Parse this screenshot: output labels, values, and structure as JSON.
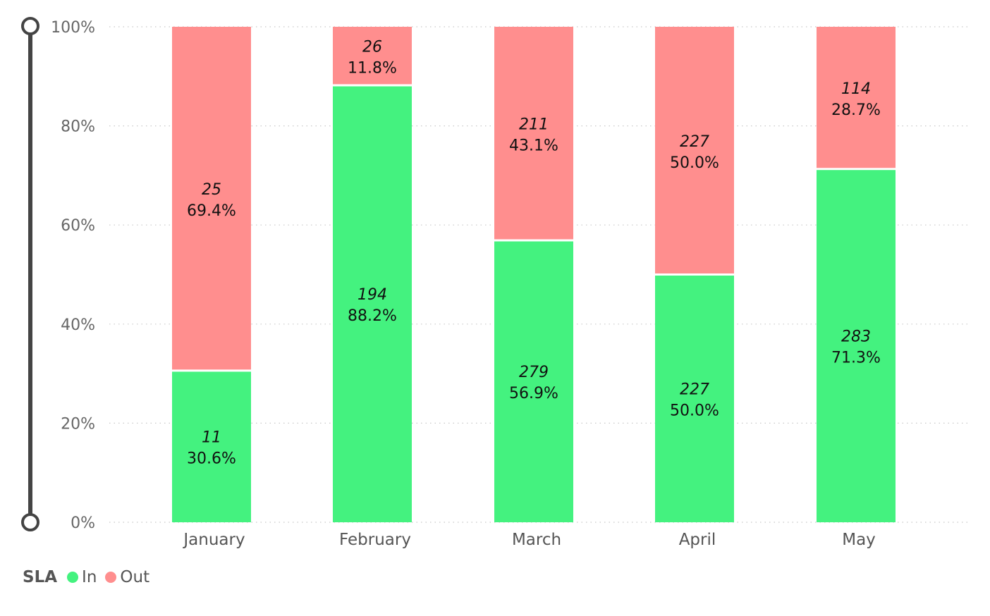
{
  "chart_data": {
    "type": "bar",
    "stacked": "percent",
    "categories": [
      "January",
      "February",
      "March",
      "April",
      "May"
    ],
    "series": [
      {
        "name": "In",
        "color": "#44f27f",
        "counts": [
          11,
          194,
          279,
          227,
          283
        ],
        "percents": [
          30.6,
          88.2,
          56.9,
          50.0,
          71.3
        ]
      },
      {
        "name": "Out",
        "color": "#ff8e8e",
        "counts": [
          25,
          26,
          211,
          227,
          114
        ],
        "percents": [
          69.4,
          11.8,
          43.1,
          50.0,
          28.7
        ]
      }
    ],
    "count_labels": {
      "In": [
        "11",
        "194",
        "279",
        "227",
        "283"
      ],
      "Out": [
        "25",
        "26",
        "211",
        "227",
        "114"
      ]
    },
    "percent_labels": {
      "In": [
        "30.6%",
        "88.2%",
        "56.9%",
        "50.0%",
        "71.3%"
      ],
      "Out": [
        "69.4%",
        "11.8%",
        "43.1%",
        "50.0%",
        "28.7%"
      ]
    },
    "yticks": [
      "0%",
      "20%",
      "40%",
      "60%",
      "80%",
      "100%"
    ],
    "ylim": [
      0,
      100
    ],
    "grid": true,
    "legend": {
      "position": "bottom-left",
      "title": "SLA",
      "items": [
        "In",
        "Out"
      ]
    }
  }
}
